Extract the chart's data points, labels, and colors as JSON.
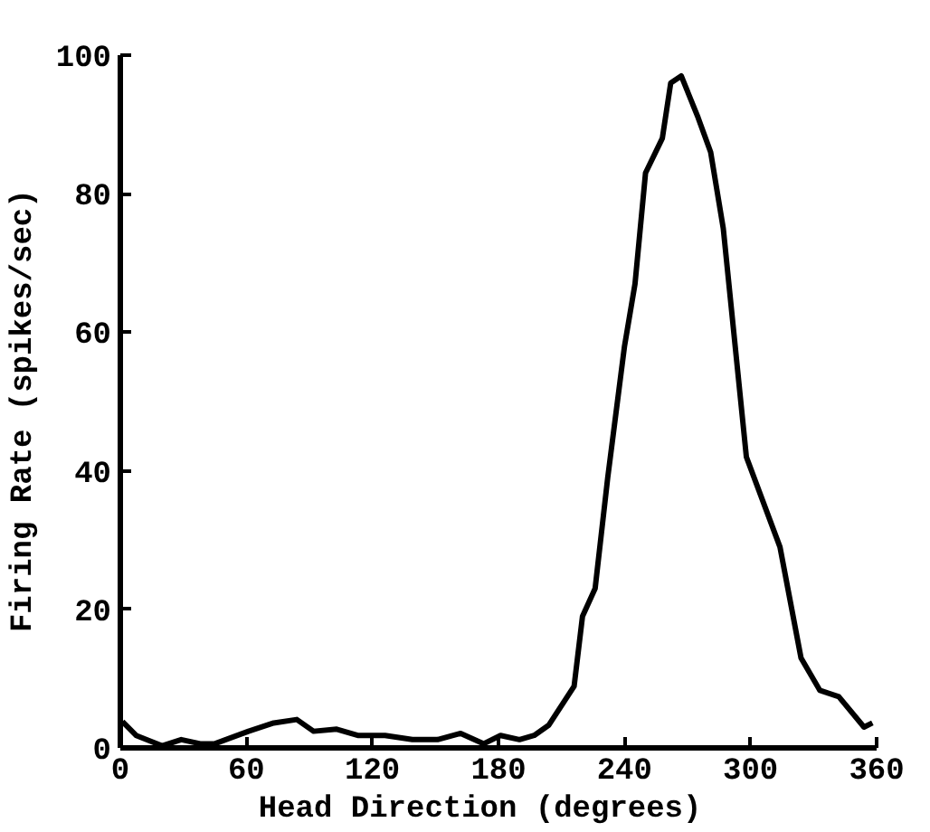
{
  "chart_data": {
    "type": "line",
    "xlabel": "Head Direction   (degrees)",
    "ylabel": "Firing Rate  (spikes/sec)",
    "x": [
      1,
      7.5,
      20,
      29,
      38,
      45,
      61,
      73,
      84,
      92,
      103,
      113,
      126,
      139,
      151,
      162,
      173,
      181,
      190,
      197,
      204,
      216,
      220,
      226,
      232,
      240,
      245,
      250,
      258,
      262,
      267,
      275,
      281,
      287,
      298,
      314,
      324,
      333,
      342,
      354,
      358
    ],
    "series": [
      {
        "color": "#000000",
        "values": [
          3.8,
          1.8,
          0.3,
          1.2,
          0.6,
          0.6,
          2.4,
          3.6,
          4.1,
          2.4,
          2.7,
          1.8,
          1.8,
          1.2,
          1.2,
          2.1,
          0.6,
          1.8,
          1.2,
          1.8,
          3.3,
          8.9,
          19,
          23,
          39,
          58,
          67,
          83,
          88,
          96,
          97,
          91,
          86,
          75,
          42,
          29,
          13,
          8.3,
          7.4,
          3.0,
          3.6
        ]
      }
    ],
    "xlim": [
      0,
      360
    ],
    "ylim": [
      0,
      100
    ],
    "xticks": [
      0,
      60,
      120,
      180,
      240,
      300,
      360
    ],
    "yticks": [
      0,
      20,
      40,
      60,
      80,
      100
    ],
    "grid": false,
    "marker": "none",
    "line_style": "solid"
  }
}
